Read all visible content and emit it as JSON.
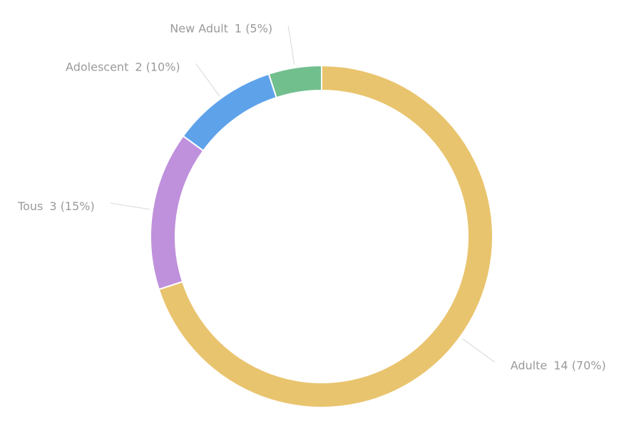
{
  "chart_data": {
    "type": "donut",
    "categories": [
      "Adulte",
      "Tous",
      "Adolescent",
      "New Adult"
    ],
    "values": [
      14,
      3,
      2,
      1
    ],
    "value_labels": [
      "14 (70%)",
      "3 (15%)",
      "2 (10%)",
      "1 (5%)"
    ],
    "colors": [
      "#e9c46e",
      "#bf91dc",
      "#5ea2ea",
      "#72bf8e"
    ]
  }
}
